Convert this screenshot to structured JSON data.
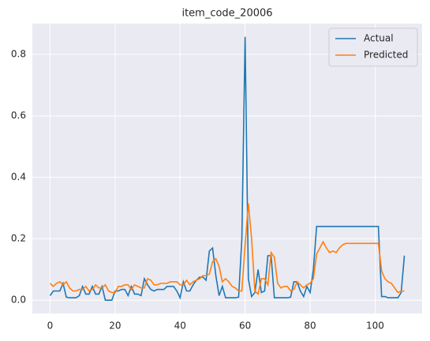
{
  "chart_data": {
    "type": "line",
    "title": "item_code_20006",
    "x": [
      0,
      1,
      2,
      3,
      4,
      5,
      6,
      7,
      8,
      9,
      10,
      11,
      12,
      13,
      14,
      15,
      16,
      17,
      18,
      19,
      20,
      21,
      22,
      23,
      24,
      25,
      26,
      27,
      28,
      29,
      30,
      31,
      32,
      33,
      34,
      35,
      36,
      37,
      38,
      39,
      40,
      41,
      42,
      43,
      44,
      45,
      46,
      47,
      48,
      49,
      50,
      51,
      52,
      53,
      54,
      55,
      56,
      57,
      58,
      59,
      60,
      61,
      62,
      63,
      64,
      65,
      66,
      67,
      68,
      69,
      70,
      71,
      72,
      73,
      74,
      75,
      76,
      77,
      78,
      79,
      80,
      81,
      82,
      83,
      84,
      85,
      86,
      87,
      88,
      89,
      90,
      91,
      92,
      93,
      94,
      95,
      96,
      97,
      98,
      99,
      100,
      101,
      102,
      103,
      104,
      105,
      106,
      107,
      108,
      109
    ],
    "series": [
      {
        "name": "Actual",
        "color": "#1f77b4",
        "values": [
          0.015,
          0.03,
          0.03,
          0.03,
          0.055,
          0.01,
          0.008,
          0.008,
          0.008,
          0.015,
          0.045,
          0.02,
          0.02,
          0.045,
          0.02,
          0.02,
          0.045,
          0,
          0,
          0,
          0.03,
          0.03,
          0.035,
          0.035,
          0.015,
          0.045,
          0.02,
          0.02,
          0.015,
          0.07,
          0.05,
          0.035,
          0.03,
          0.035,
          0.035,
          0.035,
          0.045,
          0.045,
          0.045,
          0.03,
          0.008,
          0.06,
          0.03,
          0.03,
          0.05,
          0.065,
          0.075,
          0.075,
          0.065,
          0.16,
          0.17,
          0.08,
          0.015,
          0.045,
          0.008,
          0.008,
          0.008,
          0.008,
          0.01,
          0.2,
          0.857,
          0.07,
          0.012,
          0.025,
          0.1,
          0.025,
          0.03,
          0.145,
          0.145,
          0.008,
          0.008,
          0.008,
          0.008,
          0.008,
          0.01,
          0.06,
          0.06,
          0.03,
          0.012,
          0.045,
          0.025,
          0.1,
          0.24,
          0.24,
          0.24,
          0.24,
          0.24,
          0.24,
          0.24,
          0.24,
          0.24,
          0.24,
          0.24,
          0.24,
          0.24,
          0.24,
          0.24,
          0.24,
          0.24,
          0.24,
          0.24,
          0.24,
          0.012,
          0.012,
          0.008,
          0.008,
          0.008,
          0.008,
          0.025,
          0.145
        ]
      },
      {
        "name": "Predicted",
        "color": "#ff7f0e",
        "values": [
          0.055,
          0.045,
          0.055,
          0.06,
          0.05,
          0.06,
          0.04,
          0.03,
          0.03,
          0.035,
          0.035,
          0.045,
          0.03,
          0.035,
          0.05,
          0.04,
          0.04,
          0.05,
          0.03,
          0.025,
          0.025,
          0.045,
          0.045,
          0.05,
          0.05,
          0.035,
          0.05,
          0.045,
          0.04,
          0.04,
          0.07,
          0.065,
          0.05,
          0.05,
          0.055,
          0.055,
          0.055,
          0.06,
          0.06,
          0.06,
          0.05,
          0.05,
          0.065,
          0.05,
          0.06,
          0.065,
          0.07,
          0.08,
          0.08,
          0.085,
          0.125,
          0.135,
          0.11,
          0.06,
          0.07,
          0.06,
          0.045,
          0.04,
          0.03,
          0.03,
          0.18,
          0.315,
          0.2,
          0.03,
          0.02,
          0.07,
          0.07,
          0.05,
          0.155,
          0.14,
          0.055,
          0.04,
          0.045,
          0.045,
          0.03,
          0.035,
          0.06,
          0.05,
          0.04,
          0.05,
          0.055,
          0.07,
          0.15,
          0.17,
          0.19,
          0.17,
          0.155,
          0.16,
          0.155,
          0.17,
          0.18,
          0.185,
          0.185,
          0.185,
          0.185,
          0.185,
          0.185,
          0.185,
          0.185,
          0.185,
          0.185,
          0.185,
          0.095,
          0.07,
          0.06,
          0.055,
          0.04,
          0.025,
          0.03,
          0.03
        ]
      }
    ],
    "xlim": [
      -5.45,
      114.45
    ],
    "xticks": [
      0,
      20,
      40,
      60,
      80,
      100
    ],
    "ylim": [
      -0.043,
      0.9
    ],
    "yticks": [
      {
        "value": 0,
        "label": "0.0"
      },
      0.2,
      0.4,
      0.6,
      0.8
    ],
    "grid": true,
    "legend": "upper right"
  }
}
